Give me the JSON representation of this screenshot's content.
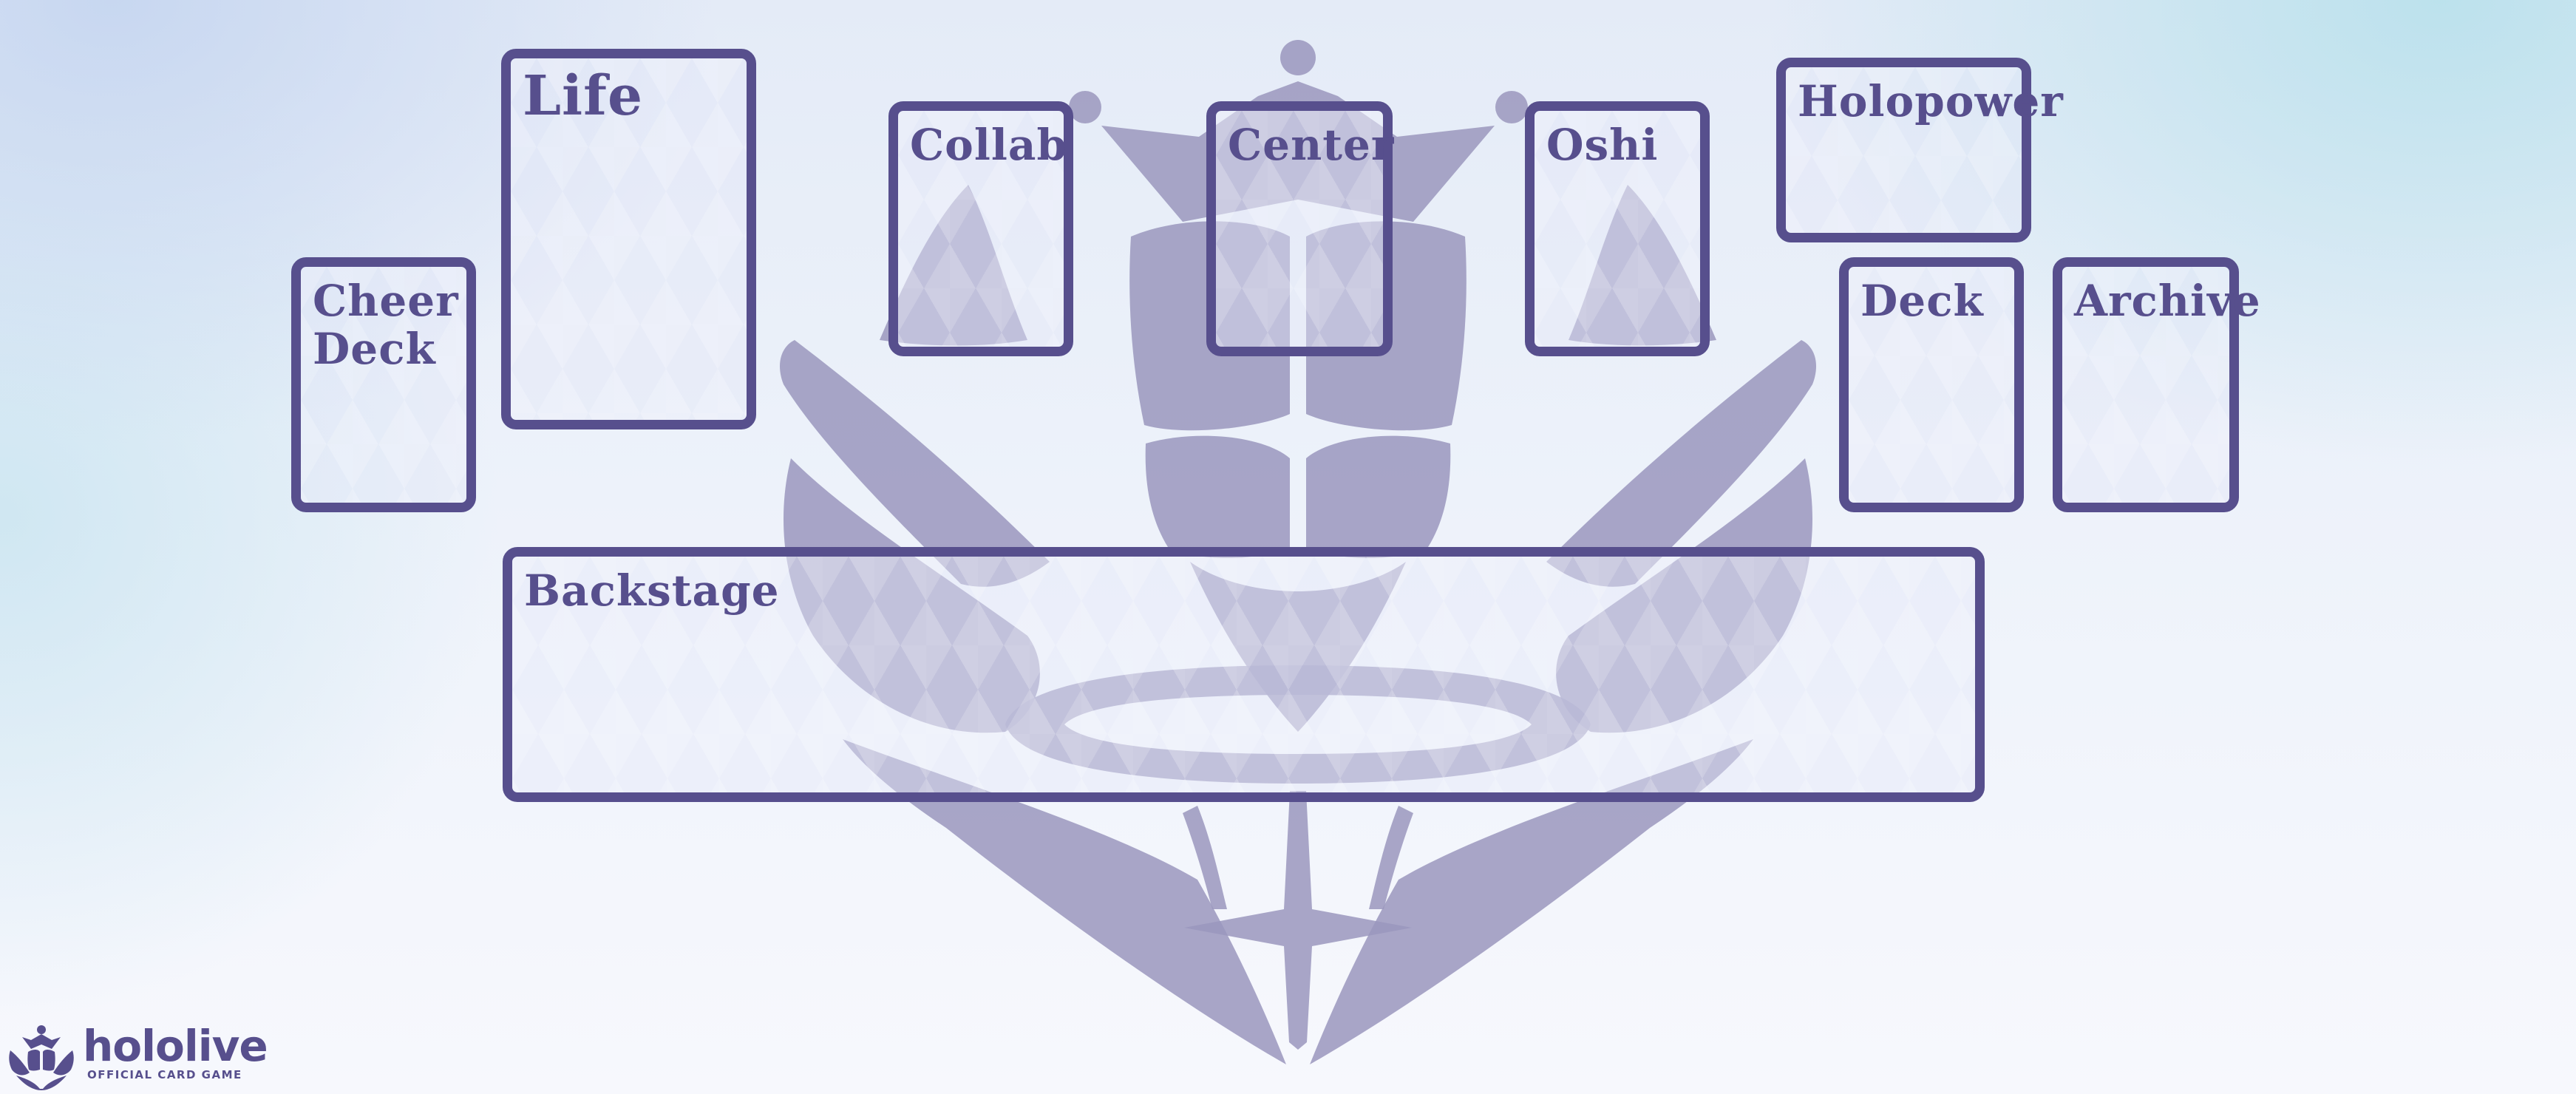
{
  "playmat": {
    "colors": {
      "zone_border": "#574f8d",
      "emblem": "#9a96bd",
      "background_top_left": "#c6d6f0",
      "background_top_right": "#bae1ec",
      "background_bottom": "#f7f8fd"
    },
    "zones": {
      "cheer_deck": "Cheer\nDeck",
      "life": "Life",
      "collab": "Collab",
      "center": "Center",
      "oshi": "Oshi",
      "holopower": "Holopower",
      "deck": "Deck",
      "archive": "Archive",
      "backstage": "Backstage"
    },
    "logo": {
      "wordmark": "hololive",
      "tagline": "OFFICIAL CARD GAME",
      "emblem_icon": "crest-icon"
    }
  }
}
